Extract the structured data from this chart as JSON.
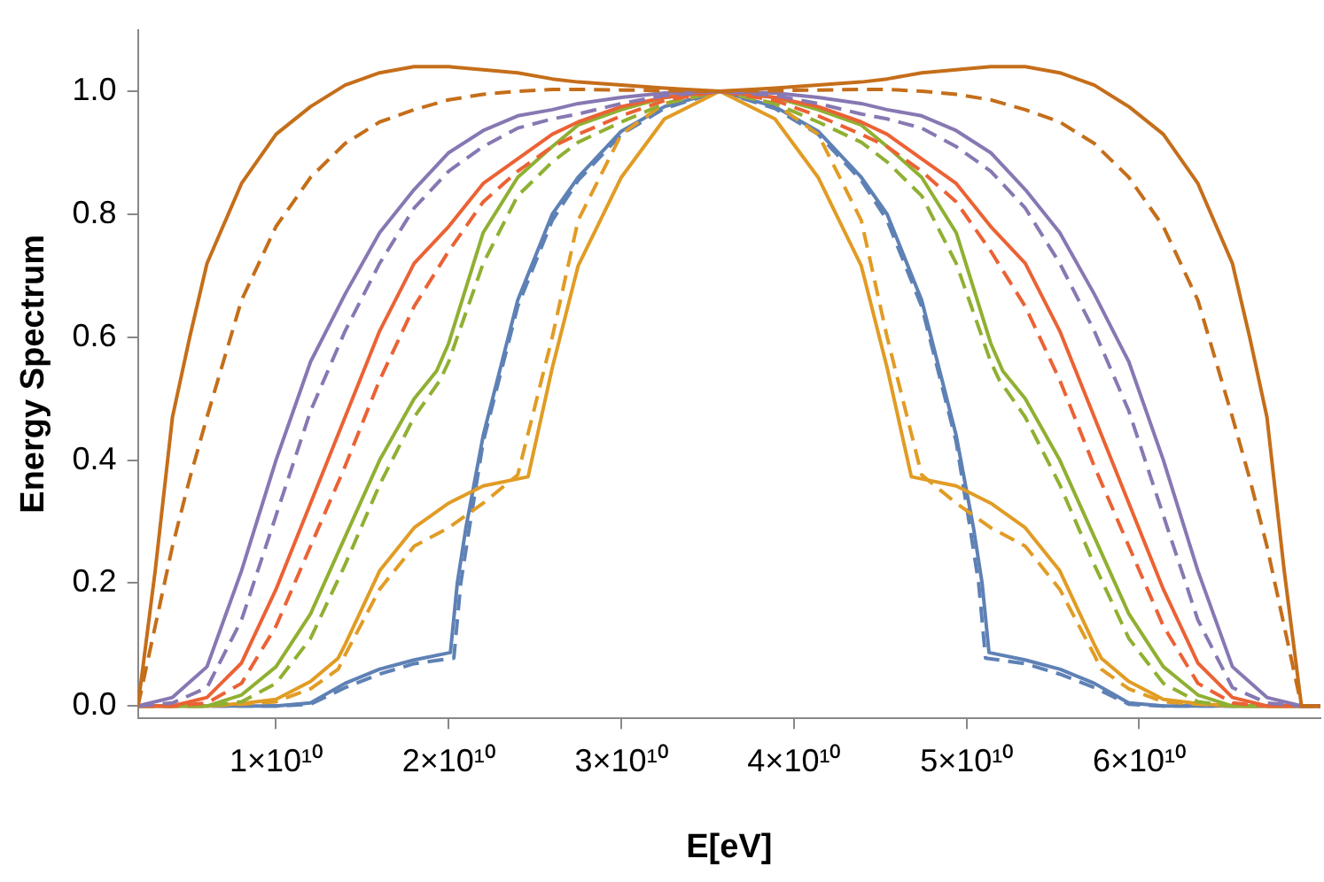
{
  "chart_data": {
    "type": "line",
    "xlabel": "E[eV]",
    "ylabel": "Energy Spectrum",
    "xlim": [
      2000000000.0,
      70500000000.0
    ],
    "ylim": [
      -0.02,
      1.1
    ],
    "xticks": [
      {
        "value": 10000000000.0,
        "label": "1×10¹⁰"
      },
      {
        "value": 20000000000.0,
        "label": "2×10¹⁰"
      },
      {
        "value": 30000000000.0,
        "label": "3×10¹⁰"
      },
      {
        "value": 40000000000.0,
        "label": "4×10¹⁰"
      },
      {
        "value": 50000000000.0,
        "label": "5×10¹⁰"
      },
      {
        "value": 60000000000.0,
        "label": "6×10¹⁰"
      }
    ],
    "yticks": [
      {
        "value": 0,
        "label": "0.0"
      },
      0.2,
      0.4,
      0.6,
      0.8,
      {
        "value": 1,
        "label": "1.0"
      }
    ],
    "grid": false,
    "legend": false,
    "marker": "none",
    "series": [
      {
        "color": "#c56e1a",
        "line_style": "solid",
        "x": [
          2000000000.0,
          3000000000.0,
          4000000000.0,
          5000000000.0,
          6000000000.0,
          8000000000.0,
          10000000000.0,
          12000000000.0,
          14000000000.0,
          16000000000.0,
          18000000000.0,
          20000000000.0,
          22000000000.0,
          24000000000.0,
          26000000000.0,
          27500000000.0,
          30000000000.0,
          32500000000.0,
          35700000000.0,
          38900000000.0,
          41400000000.0,
          43900000000.0,
          45400000000.0,
          47400000000.0,
          49400000000.0,
          51400000000.0,
          53400000000.0,
          55400000000.0,
          57400000000.0,
          59400000000.0,
          61400000000.0,
          63400000000.0,
          65400000000.0,
          66400000000.0,
          67400000000.0,
          68400000000.0,
          69400000000.0,
          70500000000.0
        ],
        "values": [
          0,
          0.22,
          0.47,
          0.6,
          0.72,
          0.85,
          0.93,
          0.975,
          1.01,
          1.03,
          1.04,
          1.04,
          1.035,
          1.03,
          1.02,
          1.015,
          1.01,
          1.005,
          1,
          1.005,
          1.01,
          1.015,
          1.02,
          1.03,
          1.035,
          1.04,
          1.04,
          1.03,
          1.01,
          0.975,
          0.93,
          0.85,
          0.72,
          0.6,
          0.47,
          0.22,
          0,
          0
        ]
      },
      {
        "color": "#c56e1a",
        "line_style": "dashed",
        "x": [
          2000000000.0,
          3000000000.0,
          4000000000.0,
          5000000000.0,
          6000000000.0,
          8000000000.0,
          10000000000.0,
          12000000000.0,
          14000000000.0,
          16000000000.0,
          18000000000.0,
          20000000000.0,
          22000000000.0,
          24000000000.0,
          26000000000.0,
          27500000000.0,
          30000000000.0,
          32500000000.0,
          35700000000.0,
          38900000000.0,
          41400000000.0,
          43900000000.0,
          45400000000.0,
          47400000000.0,
          49400000000.0,
          51400000000.0,
          53400000000.0,
          55400000000.0,
          57400000000.0,
          59400000000.0,
          61400000000.0,
          63400000000.0,
          65400000000.0,
          66400000000.0,
          67400000000.0,
          68400000000.0,
          69400000000.0,
          70500000000.0
        ],
        "values": [
          0,
          0.13,
          0.26,
          0.37,
          0.47,
          0.66,
          0.78,
          0.86,
          0.915,
          0.95,
          0.97,
          0.986,
          0.995,
          1,
          1.003,
          1.003,
          1.002,
          1.001,
          1,
          1.001,
          1.002,
          1.003,
          1.003,
          1,
          0.995,
          0.986,
          0.97,
          0.95,
          0.915,
          0.86,
          0.78,
          0.66,
          0.47,
          0.37,
          0.26,
          0.13,
          0,
          0
        ]
      },
      {
        "color": "#8778b3",
        "line_style": "solid",
        "x": [
          2000000000.0,
          4000000000.0,
          6000000000.0,
          8000000000.0,
          10000000000.0,
          12000000000.0,
          14000000000.0,
          16000000000.0,
          18000000000.0,
          20000000000.0,
          22000000000.0,
          24000000000.0,
          26000000000.0,
          27500000000.0,
          30000000000.0,
          32500000000.0,
          35700000000.0,
          38900000000.0,
          41400000000.0,
          43900000000.0,
          45400000000.0,
          47400000000.0,
          49400000000.0,
          51400000000.0,
          53400000000.0,
          55400000000.0,
          57400000000.0,
          59400000000.0,
          61400000000.0,
          63400000000.0,
          65400000000.0,
          67400000000.0,
          69400000000.0,
          70500000000.0
        ],
        "values": [
          0,
          0.014,
          0.064,
          0.22,
          0.4,
          0.56,
          0.67,
          0.77,
          0.84,
          0.9,
          0.936,
          0.96,
          0.97,
          0.98,
          0.99,
          0.997,
          1,
          0.997,
          0.99,
          0.98,
          0.97,
          0.96,
          0.936,
          0.9,
          0.84,
          0.77,
          0.67,
          0.56,
          0.4,
          0.22,
          0.064,
          0.014,
          0,
          0
        ]
      },
      {
        "color": "#8778b3",
        "line_style": "dashed",
        "x": [
          2000000000.0,
          4000000000.0,
          6000000000.0,
          8000000000.0,
          10000000000.0,
          12000000000.0,
          14000000000.0,
          16000000000.0,
          18000000000.0,
          20000000000.0,
          22000000000.0,
          24000000000.0,
          26000000000.0,
          27500000000.0,
          30000000000.0,
          32500000000.0,
          35700000000.0,
          38900000000.0,
          41400000000.0,
          43900000000.0,
          45400000000.0,
          47400000000.0,
          49400000000.0,
          51400000000.0,
          53400000000.0,
          55400000000.0,
          57400000000.0,
          59400000000.0,
          61400000000.0,
          63400000000.0,
          65400000000.0,
          67400000000.0,
          69400000000.0,
          70500000000.0
        ],
        "values": [
          0,
          0.005,
          0.03,
          0.14,
          0.31,
          0.48,
          0.61,
          0.72,
          0.81,
          0.87,
          0.91,
          0.94,
          0.955,
          0.963,
          0.98,
          0.993,
          1,
          0.993,
          0.98,
          0.963,
          0.955,
          0.94,
          0.91,
          0.87,
          0.81,
          0.72,
          0.61,
          0.48,
          0.31,
          0.14,
          0.03,
          0.005,
          0,
          0
        ]
      },
      {
        "color": "#eb6235",
        "line_style": "solid",
        "x": [
          2000000000.0,
          4000000000.0,
          6000000000.0,
          8000000000.0,
          10000000000.0,
          12000000000.0,
          14000000000.0,
          16000000000.0,
          18000000000.0,
          20000000000.0,
          22000000000.0,
          24000000000.0,
          26000000000.0,
          27500000000.0,
          30000000000.0,
          32500000000.0,
          35700000000.0,
          38900000000.0,
          41400000000.0,
          43900000000.0,
          45400000000.0,
          47400000000.0,
          49400000000.0,
          51400000000.0,
          53400000000.0,
          55400000000.0,
          57400000000.0,
          59400000000.0,
          61400000000.0,
          63400000000.0,
          65400000000.0,
          67400000000.0,
          69400000000.0,
          70500000000.0
        ],
        "values": [
          0,
          0,
          0.014,
          0.07,
          0.19,
          0.33,
          0.47,
          0.61,
          0.72,
          0.78,
          0.85,
          0.89,
          0.93,
          0.95,
          0.975,
          0.99,
          1,
          0.99,
          0.975,
          0.95,
          0.93,
          0.89,
          0.85,
          0.78,
          0.72,
          0.61,
          0.47,
          0.33,
          0.19,
          0.07,
          0.014,
          0,
          0,
          0
        ]
      },
      {
        "color": "#eb6235",
        "line_style": "dashed",
        "x": [
          2000000000.0,
          4000000000.0,
          6000000000.0,
          8000000000.0,
          10000000000.0,
          12000000000.0,
          14000000000.0,
          16000000000.0,
          18000000000.0,
          20000000000.0,
          22000000000.0,
          24000000000.0,
          26000000000.0,
          27500000000.0,
          30000000000.0,
          32500000000.0,
          35700000000.0,
          38900000000.0,
          41400000000.0,
          43900000000.0,
          45400000000.0,
          47400000000.0,
          49400000000.0,
          51400000000.0,
          53400000000.0,
          55400000000.0,
          57400000000.0,
          59400000000.0,
          61400000000.0,
          63400000000.0,
          65400000000.0,
          67400000000.0,
          69400000000.0,
          70500000000.0
        ],
        "values": [
          0,
          0,
          0.005,
          0.037,
          0.13,
          0.26,
          0.39,
          0.53,
          0.65,
          0.74,
          0.82,
          0.87,
          0.91,
          0.93,
          0.96,
          0.985,
          1,
          0.985,
          0.96,
          0.93,
          0.91,
          0.87,
          0.82,
          0.74,
          0.65,
          0.53,
          0.39,
          0.26,
          0.13,
          0.037,
          0.005,
          0,
          0,
          0
        ]
      },
      {
        "color": "#8fb032",
        "line_style": "solid",
        "x": [
          2000000000.0,
          6000000000.0,
          8000000000.0,
          10000000000.0,
          12000000000.0,
          14000000000.0,
          16000000000.0,
          18000000000.0,
          19300000000.0,
          20000000000.0,
          22000000000.0,
          24000000000.0,
          26000000000.0,
          27500000000.0,
          30000000000.0,
          32500000000.0,
          35700000000.0,
          38900000000.0,
          41400000000.0,
          43900000000.0,
          45400000000.0,
          47400000000.0,
          49400000000.0,
          51400000000.0,
          52100000000.0,
          53400000000.0,
          55400000000.0,
          57400000000.0,
          59400000000.0,
          61400000000.0,
          63400000000.0,
          65400000000.0,
          69400000000.0,
          70500000000.0
        ],
        "values": [
          0,
          0,
          0.018,
          0.064,
          0.15,
          0.275,
          0.4,
          0.5,
          0.545,
          0.59,
          0.77,
          0.86,
          0.91,
          0.945,
          0.97,
          0.99,
          1,
          0.99,
          0.97,
          0.945,
          0.91,
          0.86,
          0.77,
          0.59,
          0.545,
          0.5,
          0.4,
          0.275,
          0.15,
          0.064,
          0.018,
          0,
          0,
          0
        ]
      },
      {
        "color": "#8fb032",
        "line_style": "dashed",
        "x": [
          2000000000.0,
          6000000000.0,
          8000000000.0,
          10000000000.0,
          12000000000.0,
          14000000000.0,
          16000000000.0,
          18000000000.0,
          19500000000.0,
          20000000000.0,
          22000000000.0,
          24000000000.0,
          26000000000.0,
          27500000000.0,
          30000000000.0,
          32500000000.0,
          35700000000.0,
          38900000000.0,
          41400000000.0,
          43900000000.0,
          45400000000.0,
          47400000000.0,
          49400000000.0,
          51400000000.0,
          51900000000.0,
          53400000000.0,
          55400000000.0,
          57400000000.0,
          59400000000.0,
          61400000000.0,
          63400000000.0,
          65400000000.0,
          69400000000.0,
          70500000000.0
        ],
        "values": [
          0,
          0,
          0.007,
          0.037,
          0.11,
          0.23,
          0.36,
          0.47,
          0.53,
          0.56,
          0.72,
          0.83,
          0.885,
          0.917,
          0.95,
          0.98,
          1,
          0.98,
          0.95,
          0.917,
          0.885,
          0.83,
          0.72,
          0.56,
          0.53,
          0.47,
          0.36,
          0.23,
          0.11,
          0.037,
          0.007,
          0,
          0,
          0
        ]
      },
      {
        "color": "#e19c24",
        "line_style": "solid",
        "x": [
          2000000000.0,
          6000000000.0,
          8000000000.0,
          10000000000.0,
          12000000000.0,
          13600000000.0,
          14000000000.0,
          16000000000.0,
          18000000000.0,
          20000000000.0,
          22000000000.0,
          24600000000.0,
          26000000000.0,
          27500000000.0,
          30000000000.0,
          32500000000.0,
          35700000000.0,
          38900000000.0,
          41400000000.0,
          43900000000.0,
          45400000000.0,
          46800000000.0,
          49400000000.0,
          51400000000.0,
          53400000000.0,
          55400000000.0,
          57400000000.0,
          57800000000.0,
          59400000000.0,
          61400000000.0,
          63400000000.0,
          65400000000.0,
          69400000000.0,
          70500000000.0
        ],
        "values": [
          0,
          0,
          0.004,
          0.011,
          0.04,
          0.078,
          0.1,
          0.22,
          0.29,
          0.33,
          0.358,
          0.373,
          0.55,
          0.716,
          0.86,
          0.955,
          1,
          0.955,
          0.86,
          0.716,
          0.55,
          0.373,
          0.358,
          0.33,
          0.29,
          0.22,
          0.1,
          0.078,
          0.04,
          0.011,
          0.004,
          0,
          0,
          0
        ]
      },
      {
        "color": "#e19c24",
        "line_style": "dashed",
        "x": [
          2000000000.0,
          6000000000.0,
          8000000000.0,
          10000000000.0,
          12000000000.0,
          13600000000.0,
          14000000000.0,
          16000000000.0,
          18000000000.0,
          20000000000.0,
          22000000000.0,
          24000000000.0,
          26000000000.0,
          27500000000.0,
          30000000000.0,
          32500000000.0,
          35700000000.0,
          38900000000.0,
          41400000000.0,
          43900000000.0,
          45400000000.0,
          47400000000.0,
          49400000000.0,
          51400000000.0,
          53400000000.0,
          55400000000.0,
          57400000000.0,
          57800000000.0,
          59400000000.0,
          61400000000.0,
          63400000000.0,
          65400000000.0,
          69400000000.0,
          70500000000.0
        ],
        "values": [
          0,
          0,
          0.003,
          0.007,
          0.028,
          0.06,
          0.083,
          0.19,
          0.26,
          0.29,
          0.33,
          0.376,
          0.6,
          0.79,
          0.93,
          0.98,
          1,
          0.98,
          0.93,
          0.79,
          0.6,
          0.376,
          0.33,
          0.29,
          0.26,
          0.19,
          0.083,
          0.06,
          0.028,
          0.007,
          0.003,
          0,
          0,
          0
        ]
      },
      {
        "color": "#5e81b5",
        "line_style": "solid",
        "x": [
          2000000000.0,
          10000000000.0,
          12000000000.0,
          14000000000.0,
          16000000000.0,
          18000000000.0,
          20100000000.0,
          20500000000.0,
          21000000000.0,
          22000000000.0,
          24000000000.0,
          26000000000.0,
          27500000000.0,
          30000000000.0,
          32500000000.0,
          35700000000.0,
          38900000000.0,
          41400000000.0,
          43900000000.0,
          45400000000.0,
          47400000000.0,
          49400000000.0,
          50400000000.0,
          50900000000.0,
          51300000000.0,
          53400000000.0,
          55400000000.0,
          57400000000.0,
          59400000000.0,
          61400000000.0,
          70500000000.0
        ],
        "values": [
          0,
          0,
          0.005,
          0.037,
          0.06,
          0.075,
          0.087,
          0.2,
          0.29,
          0.44,
          0.66,
          0.8,
          0.86,
          0.935,
          0.975,
          1,
          0.975,
          0.935,
          0.86,
          0.8,
          0.66,
          0.44,
          0.29,
          0.2,
          0.087,
          0.075,
          0.06,
          0.037,
          0.005,
          0,
          0
        ]
      },
      {
        "color": "#5e81b5",
        "line_style": "dashed",
        "x": [
          2000000000.0,
          10000000000.0,
          12000000000.0,
          14000000000.0,
          16000000000.0,
          18000000000.0,
          20300000000.0,
          20700000000.0,
          21200000000.0,
          22000000000.0,
          24000000000.0,
          26000000000.0,
          27500000000.0,
          30000000000.0,
          32500000000.0,
          35700000000.0,
          38900000000.0,
          41400000000.0,
          43900000000.0,
          45400000000.0,
          47400000000.0,
          49400000000.0,
          50200000000.0,
          50700000000.0,
          51100000000.0,
          53400000000.0,
          55400000000.0,
          57400000000.0,
          59400000000.0,
          61400000000.0,
          70500000000.0
        ],
        "values": [
          0,
          0,
          0.003,
          0.03,
          0.052,
          0.069,
          0.078,
          0.2,
          0.29,
          0.43,
          0.65,
          0.79,
          0.855,
          0.93,
          0.972,
          1,
          0.972,
          0.93,
          0.855,
          0.79,
          0.65,
          0.43,
          0.29,
          0.2,
          0.078,
          0.069,
          0.052,
          0.03,
          0.003,
          0,
          0
        ]
      }
    ]
  }
}
